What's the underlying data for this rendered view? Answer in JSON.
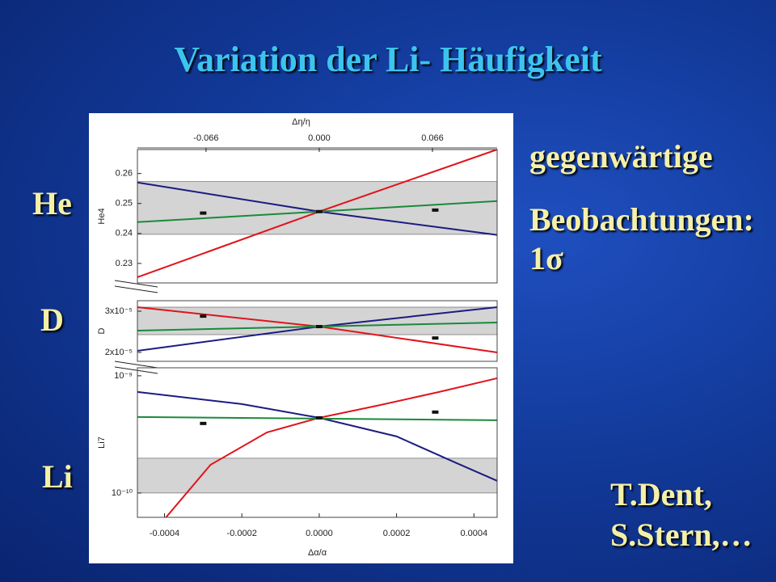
{
  "slide": {
    "title": "Variation der Li- Häufigkeit",
    "labels": [
      "He",
      "D",
      "Li"
    ],
    "note": [
      "gegenwärtige",
      "Beobachtungen:",
      "1σ"
    ],
    "credit": [
      "T.Dent,",
      "S.Stern,…"
    ]
  },
  "chart_data": [
    {
      "type": "line",
      "ylabel": "He4",
      "x2label": "Δη/η",
      "x2lim": [
        -0.106,
        0.1037
      ],
      "x2ticks": [
        -0.066,
        {
          "value": 0,
          "label": "0.000"
        },
        0.066
      ],
      "xlim": [
        -0.00047,
        0.00046
      ],
      "ylim": [
        0.2235,
        0.268
      ],
      "yticks": [
        0.23,
        0.24,
        0.25,
        0.26
      ],
      "band": [
        0.2397,
        0.2573
      ],
      "series": [
        {
          "color": "#e0141c",
          "x": [
            -0.00047,
            0,
            0.00046
          ],
          "values": [
            0.2254,
            0.2473,
            0.268
          ]
        },
        {
          "color": "#1c1c80",
          "x": [
            -0.00047,
            0,
            0.00046
          ],
          "values": [
            0.257,
            0.2473,
            0.2395
          ]
        },
        {
          "color": "#1a8a3a",
          "x": [
            -0.00047,
            0,
            0.00046
          ],
          "values": [
            0.2438,
            0.2473,
            0.2508
          ]
        }
      ],
      "points": {
        "x": [
          -0.0003,
          0,
          0.0003
        ],
        "values": [
          0.2468,
          0.2473,
          0.2478
        ]
      }
    },
    {
      "type": "line",
      "ylabel": "D",
      "xlim": [
        -0.00047,
        0.00046
      ],
      "ylim": [
        1.784e-05,
        3.255e-05
      ],
      "yticks": [
        {
          "value": 2e-05,
          "label": "2x10⁻⁵"
        },
        {
          "value": 3e-05,
          "label": "3x10⁻⁵"
        }
      ],
      "band": [
        2.431e-05,
        3.098e-05
      ],
      "series": [
        {
          "color": "#e0141c",
          "x": [
            -0.00047,
            0,
            0.00046
          ],
          "values": [
            3.098e-05,
            2.627e-05,
            2e-05
          ]
        },
        {
          "color": "#1c1c80",
          "x": [
            -0.00047,
            0,
            0.00046
          ],
          "values": [
            2.04e-05,
            2.627e-05,
            3.098e-05
          ]
        },
        {
          "color": "#1a8a3a",
          "x": [
            -0.00047,
            0.00046
          ],
          "values": [
            2.53e-05,
            2.725e-05
          ]
        }
      ],
      "points": {
        "x": [
          -0.0003,
          0,
          0.0003
        ],
        "values": [
          2.88e-05,
          2.627e-05,
          2.35e-05
        ]
      }
    },
    {
      "type": "line",
      "ylabel": "Li7",
      "xlabel": "Δα/α",
      "log": true,
      "xlim": [
        -0.00047,
        0.00046
      ],
      "ylim": [
        6.2e-11,
        1.17e-09
      ],
      "xticks": [
        -0.0004,
        -0.0002,
        {
          "value": 0,
          "label": "0.0000"
        },
        0.0002,
        0.0004
      ],
      "yticks": [
        {
          "value": 1e-10,
          "label": "10⁻¹⁰"
        },
        {
          "value": 1e-09,
          "label": "10⁻⁹"
        }
      ],
      "band": [
        1e-10,
        1.98e-10
      ],
      "series": [
        {
          "color": "#e0141c",
          "x": [
            -0.000396,
            -0.000281,
            -0.000135,
            0,
            0.00015,
            0.00031,
            0.00046
          ],
          "values": [
            6.2e-11,
            1.74e-10,
            3.29e-10,
            4.38e-10,
            5.56e-10,
            7.28e-10,
            9.53e-10
          ]
        },
        {
          "color": "#1c1c80",
          "x": [
            -0.00047,
            -0.0002,
            0,
            0.0002,
            0.00035,
            0.00046
          ],
          "values": [
            7.28e-10,
            5.74e-10,
            4.38e-10,
            3.04e-10,
            1.83e-10,
            1.27e-10
          ]
        },
        {
          "color": "#1a8a3a",
          "x": [
            -0.00047,
            0.00046
          ],
          "values": [
            4.45e-10,
            4.18e-10
          ]
        }
      ],
      "points": {
        "x": [
          -0.0003,
          0,
          0.0003
        ],
        "values": [
          3.92e-10,
          4.38e-10,
          4.9e-10
        ]
      }
    }
  ]
}
